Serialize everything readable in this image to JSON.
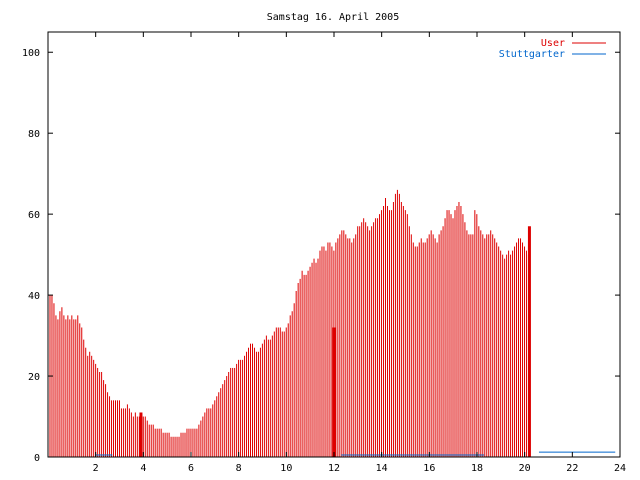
{
  "chart_data": {
    "type": "bar",
    "title": "Samstag 16. April 2005",
    "xlabel": "",
    "ylabel": "",
    "xlim": [
      0,
      24
    ],
    "ylim": [
      0,
      105
    ],
    "xticks": [
      2,
      4,
      6,
      8,
      10,
      12,
      14,
      16,
      18,
      20,
      22,
      24
    ],
    "yticks": [
      0,
      20,
      40,
      60,
      80,
      100
    ],
    "legend_position": "top-right",
    "grid": false,
    "colors": {
      "User": "#dd0000",
      "Stuttgarter": "#0066cc",
      "axis": "#000000"
    },
    "series": [
      {
        "name": "User",
        "x_start": 0.0833,
        "x_step": 0.0833,
        "values": [
          40,
          40,
          38,
          35,
          34,
          36,
          37,
          35,
          34,
          35,
          34,
          35,
          34,
          34,
          35,
          33,
          32,
          29,
          27,
          25,
          26,
          25,
          24,
          23,
          22,
          21,
          21,
          19,
          18,
          16,
          15,
          14,
          14,
          14,
          14,
          14,
          12,
          12,
          12,
          13,
          12,
          11,
          10,
          11,
          10,
          10,
          9,
          10,
          10,
          9,
          8,
          8,
          8,
          7,
          7,
          7,
          7,
          6,
          6,
          6,
          6,
          5,
          5,
          5,
          5,
          5,
          6,
          6,
          6,
          7,
          7,
          7,
          7,
          7,
          7,
          8,
          9,
          10,
          11,
          12,
          12,
          12,
          13,
          14,
          15,
          16,
          17,
          18,
          19,
          20,
          21,
          22,
          22,
          22,
          23,
          24,
          24,
          24,
          25,
          26,
          27,
          28,
          28,
          27,
          26,
          26,
          27,
          28,
          29,
          30,
          29,
          29,
          30,
          31,
          32,
          32,
          32,
          31,
          31,
          32,
          33,
          35,
          36,
          38,
          41,
          43,
          44,
          46,
          45,
          45,
          46,
          47,
          48,
          49,
          48,
          49,
          51,
          52,
          52,
          51,
          53,
          53,
          52,
          51,
          53,
          54,
          55,
          56,
          56,
          55,
          54,
          54,
          53,
          54,
          55,
          57,
          57,
          58,
          59,
          58,
          57,
          56,
          57,
          58,
          59,
          59,
          60,
          61,
          62,
          64,
          62,
          61,
          61,
          63,
          65,
          66,
          65,
          63,
          62,
          61,
          60,
          57,
          55,
          53,
          52,
          52,
          53,
          54,
          53,
          53,
          54,
          55,
          56,
          55,
          54,
          53,
          55,
          56,
          57,
          59,
          61,
          61,
          60,
          59,
          61,
          62,
          63,
          62,
          60,
          58,
          56,
          55,
          55,
          55,
          61,
          60,
          57,
          56,
          55,
          54,
          55,
          55,
          56,
          55,
          54,
          53,
          52,
          51,
          50,
          49,
          50,
          51,
          50,
          51,
          52,
          53,
          54,
          54,
          53,
          52,
          51,
          50
        ]
      },
      {
        "name": "Stuttgarter",
        "segments": [
          [
            2.0,
            2.7,
            0.5
          ],
          [
            12.3,
            18.3,
            0.5
          ],
          [
            20.6,
            23.8,
            1.2
          ]
        ]
      }
    ],
    "highlight_bars": [
      {
        "x": 3.9,
        "value": 11
      },
      {
        "x": 12.0,
        "value": 32
      },
      {
        "x": 20.2,
        "value": 57
      }
    ]
  }
}
